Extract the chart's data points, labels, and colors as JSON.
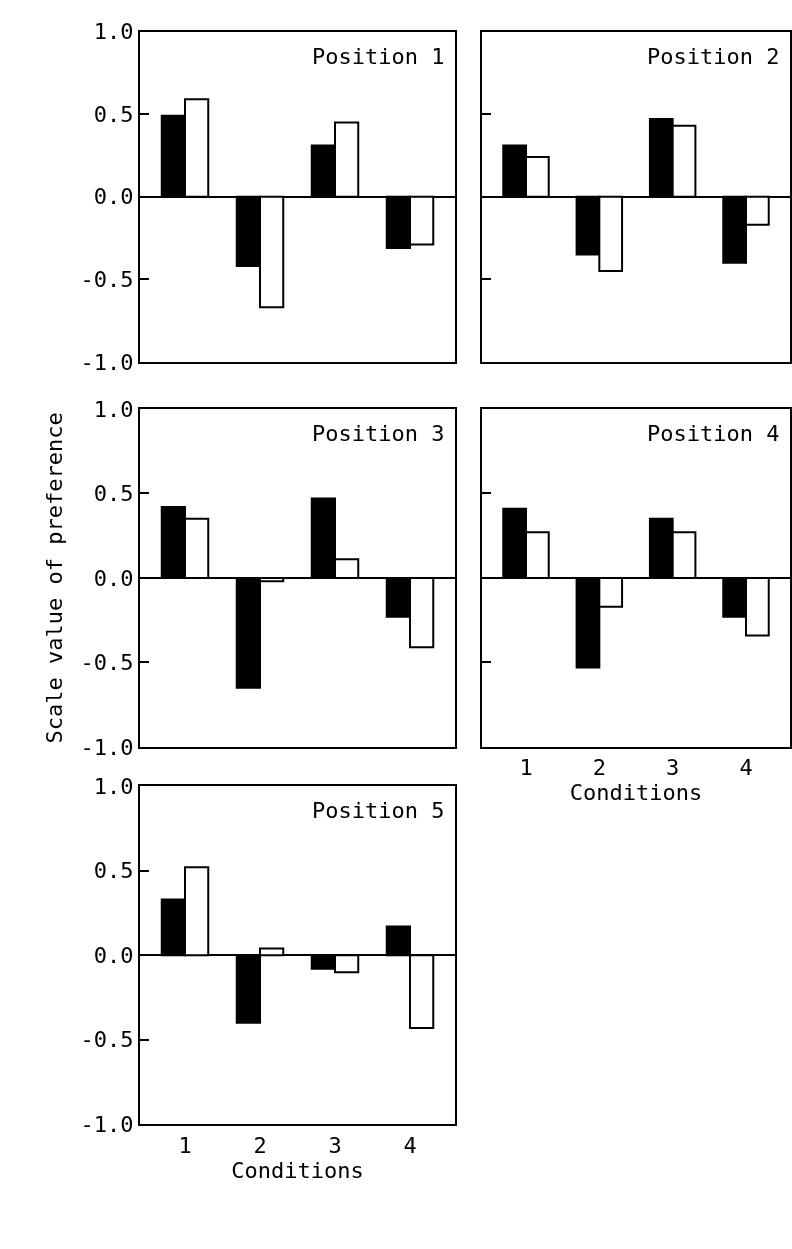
{
  "chart_data": [
    {
      "type": "bar",
      "title": "Position 1",
      "categories": [
        "1",
        "2",
        "3",
        "4"
      ],
      "series": [
        {
          "color": "#000000",
          "values": [
            0.49,
            -0.42,
            0.31,
            -0.31
          ]
        },
        {
          "color": "#ffffff",
          "values": [
            0.59,
            -0.67,
            0.45,
            -0.29
          ]
        }
      ],
      "ylim": [
        -1,
        1
      ],
      "yticks": [
        {
          "value": -1,
          "label": "-1.0"
        },
        {
          "value": -0.5,
          "label": "-0.5"
        },
        {
          "value": 0,
          "label": "0.0"
        },
        {
          "value": 0.5,
          "label": "0.5"
        },
        {
          "value": 1,
          "label": "1.0"
        }
      ],
      "tick_labels": "y"
    },
    {
      "type": "bar",
      "title": "Position 2",
      "categories": [
        "1",
        "2",
        "3",
        "4"
      ],
      "series": [
        {
          "color": "#000000",
          "values": [
            0.31,
            -0.35,
            0.47,
            -0.4
          ]
        },
        {
          "color": "#ffffff",
          "values": [
            0.24,
            -0.45,
            0.43,
            -0.17
          ]
        }
      ],
      "ylim": [
        -1,
        1
      ],
      "yticks": [
        {
          "value": -1,
          "label": null
        },
        {
          "value": -0.5,
          "label": null
        },
        {
          "value": 0,
          "label": null
        },
        {
          "value": 0.5,
          "label": null
        },
        {
          "value": 1,
          "label": null
        }
      ],
      "tick_labels": false
    },
    {
      "type": "bar",
      "title": "Position 3",
      "ylabel": "Scale value of preference",
      "categories": [
        "1",
        "2",
        "3",
        "4"
      ],
      "series": [
        {
          "color": "#000000",
          "values": [
            0.42,
            -0.65,
            0.47,
            -0.23
          ]
        },
        {
          "color": "#ffffff",
          "values": [
            0.35,
            -0.02,
            0.11,
            -0.41
          ]
        }
      ],
      "ylim": [
        -1,
        1
      ],
      "yticks": [
        {
          "value": -1,
          "label": "-1.0"
        },
        {
          "value": -0.5,
          "label": "-0.5"
        },
        {
          "value": 0,
          "label": "0.0"
        },
        {
          "value": 0.5,
          "label": "0.5"
        },
        {
          "value": 1,
          "label": "1.0"
        }
      ],
      "tick_labels": "y"
    },
    {
      "type": "bar",
      "title": "Position 4",
      "xlabel": "Conditions",
      "categories": [
        "1",
        "2",
        "3",
        "4"
      ],
      "series": [
        {
          "color": "#000000",
          "values": [
            0.41,
            -0.53,
            0.35,
            -0.23
          ]
        },
        {
          "color": "#ffffff",
          "values": [
            0.27,
            -0.17,
            0.27,
            -0.34
          ]
        }
      ],
      "ylim": [
        -1,
        1
      ],
      "yticks": [
        {
          "value": -1,
          "label": null
        },
        {
          "value": -0.5,
          "label": null
        },
        {
          "value": 0,
          "label": null
        },
        {
          "value": 0.5,
          "label": null
        },
        {
          "value": 1,
          "label": null
        }
      ],
      "tick_labels": "x"
    },
    {
      "type": "bar",
      "title": "Position 5",
      "xlabel": "Conditions",
      "categories": [
        "1",
        "2",
        "3",
        "4"
      ],
      "series": [
        {
          "color": "#000000",
          "values": [
            0.33,
            -0.4,
            -0.08,
            0.17
          ]
        },
        {
          "color": "#ffffff",
          "values": [
            0.52,
            0.04,
            -0.1,
            -0.43
          ]
        }
      ],
      "ylim": [
        -1,
        1
      ],
      "yticks": [
        {
          "value": -1,
          "label": "-1.0"
        },
        {
          "value": -0.5,
          "label": "-0.5"
        },
        {
          "value": 0,
          "label": "0.0"
        },
        {
          "value": 0.5,
          "label": "0.5"
        },
        {
          "value": 1,
          "label": "1.0"
        }
      ]
    }
  ]
}
